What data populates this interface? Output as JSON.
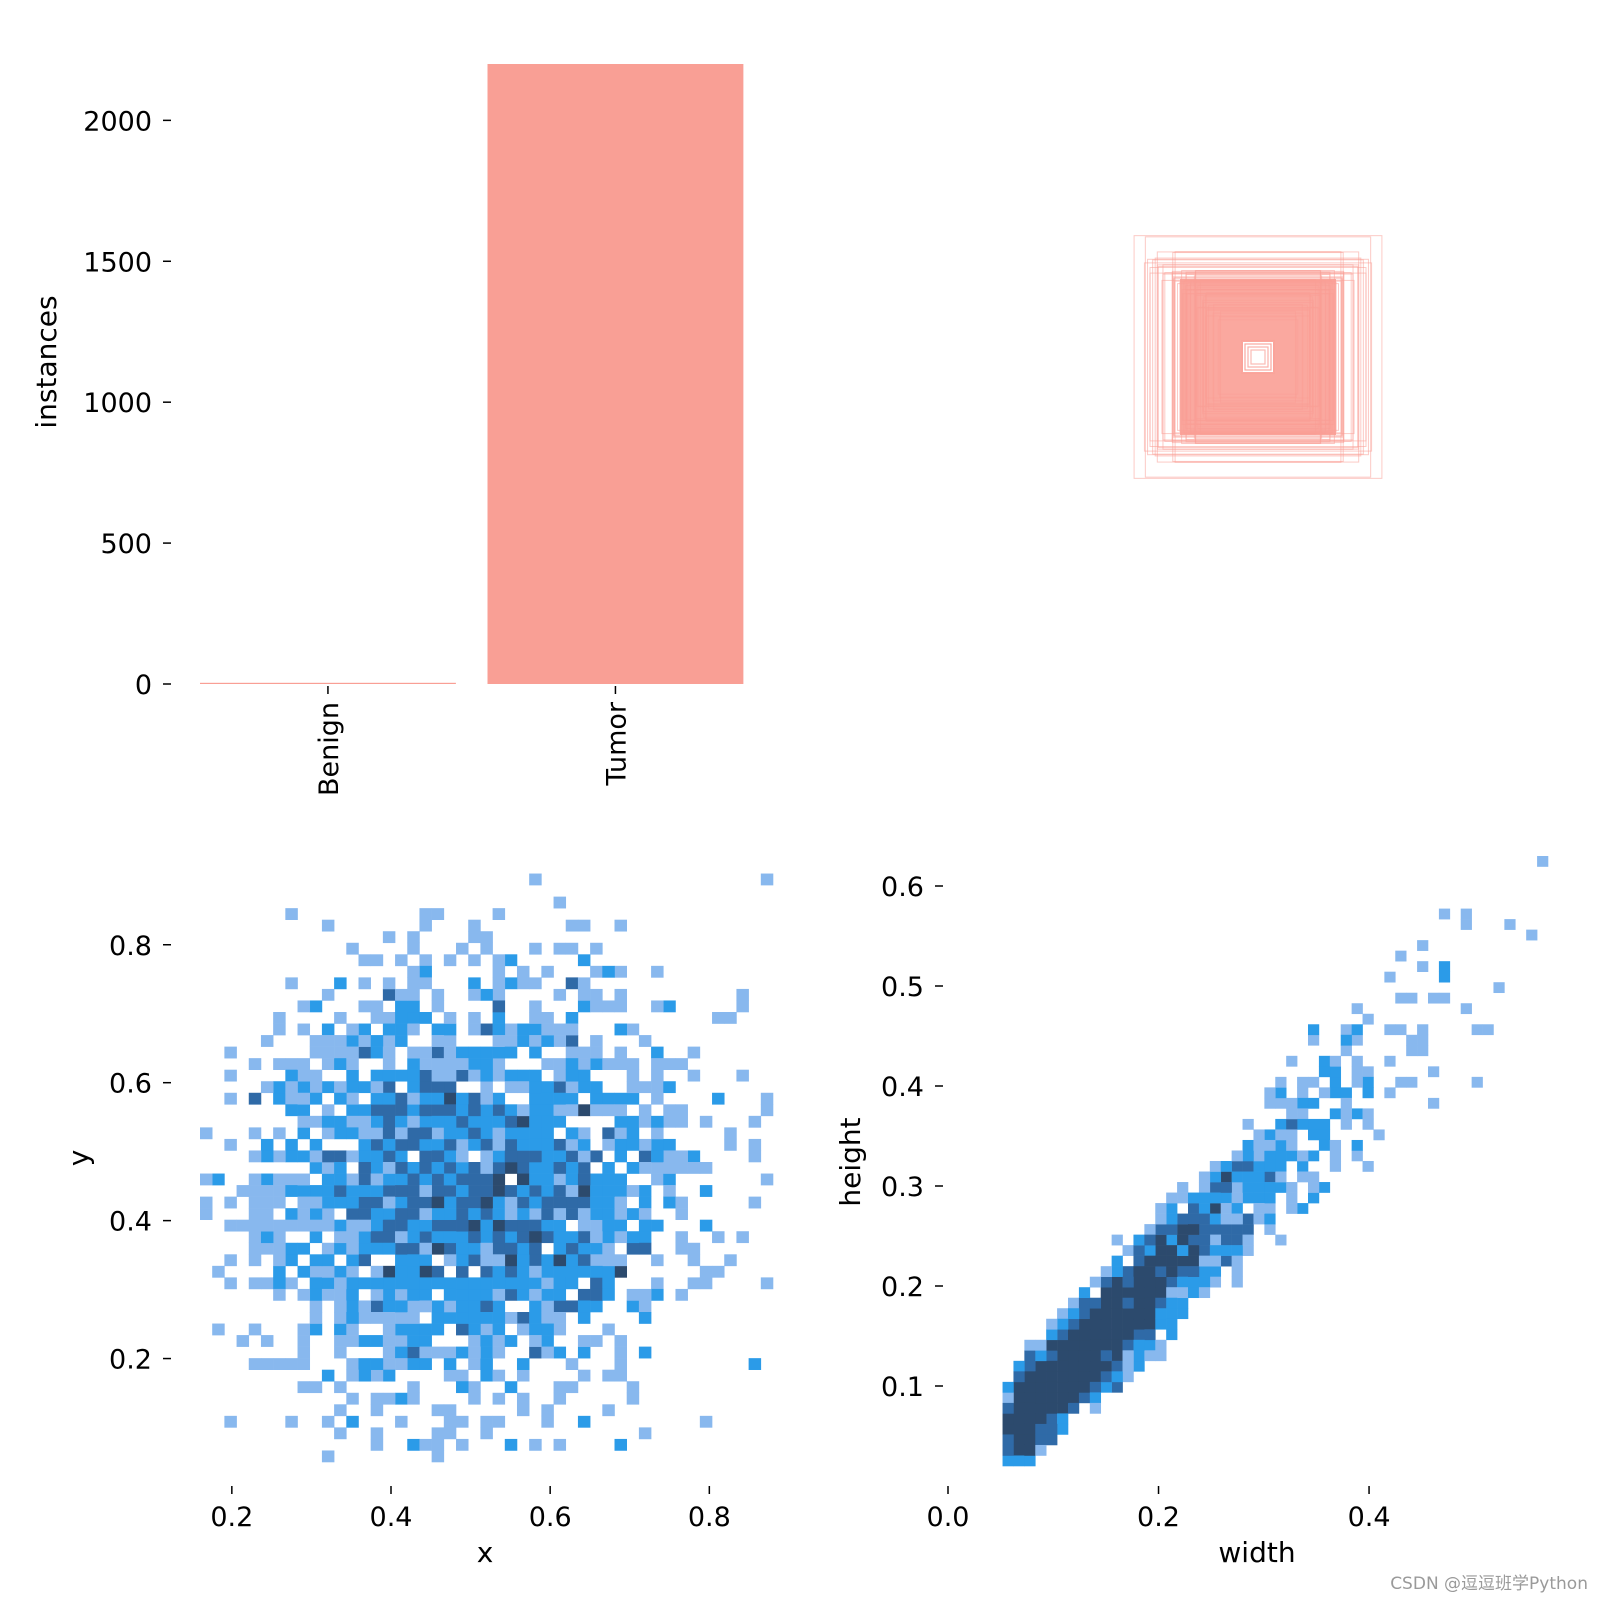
{
  "chart_data": [
    {
      "id": "classes",
      "type": "bar",
      "categories": [
        "Benign",
        "Tumor"
      ],
      "values": [
        0,
        2200
      ],
      "ylabel": "instances",
      "xlabel": "",
      "ylim": [
        0,
        2200
      ],
      "yticks": [
        0,
        500,
        1000,
        1500,
        2000
      ],
      "color": "#f99f95"
    },
    {
      "id": "boxes",
      "type": "other",
      "description_free": true,
      "box_size_fractions": [
        0.05,
        0.16,
        0.18,
        0.2,
        0.22,
        0.24,
        0.26,
        0.27,
        0.28,
        0.3,
        0.32,
        0.34,
        0.36,
        0.38
      ],
      "color": "#f99f95"
    },
    {
      "id": "xy",
      "type": "heatmap",
      "xlabel": "x",
      "ylabel": "y",
      "xlim": [
        0.16,
        0.88
      ],
      "ylim": [
        0.05,
        0.92
      ],
      "xticks": [
        0.2,
        0.4,
        0.6,
        0.8
      ],
      "yticks": [
        0.2,
        0.4,
        0.6,
        0.8
      ],
      "tick_labels_x": [
        "0.2",
        "0.4",
        "0.6",
        "0.8"
      ],
      "tick_labels_y": [
        "0.2",
        "0.4",
        "0.6",
        "0.8"
      ],
      "center": [
        0.5,
        0.45
      ],
      "spread": [
        0.14,
        0.15
      ],
      "colors": [
        "#88b8ee",
        "#2b9be8",
        "#2f6aa7",
        "#2c4a6d"
      ]
    },
    {
      "id": "wh",
      "type": "heatmap",
      "xlabel": "width",
      "ylabel": "height",
      "xlim": [
        0.0,
        0.57
      ],
      "ylim": [
        0.02,
        0.63
      ],
      "xticks": [
        0.0,
        0.2,
        0.4
      ],
      "yticks": [
        0.1,
        0.2,
        0.3,
        0.4,
        0.5,
        0.6
      ],
      "tick_labels_x": [
        "0.0",
        "0.2",
        "0.4"
      ],
      "tick_labels_y": [
        "0.1",
        "0.2",
        "0.3",
        "0.4",
        "0.5",
        "0.6"
      ],
      "trend_slope": 1.0,
      "colors": [
        "#88b8ee",
        "#2b9be8",
        "#2f6aa7",
        "#2c4a6d"
      ]
    }
  ],
  "watermark": "CSDN @逗逗班学Python"
}
